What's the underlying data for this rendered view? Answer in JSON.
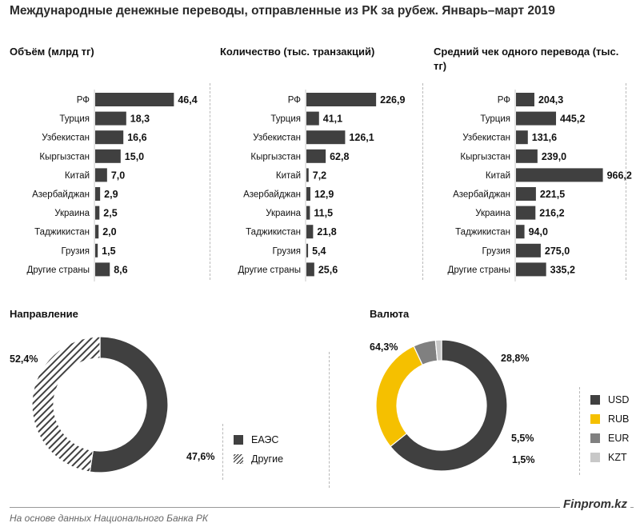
{
  "title": "Международные денежные переводы, отправленные из РК за рубеж. Январь–март 2019",
  "footer_source": "На основе данных  Национального  Банка РК",
  "brand": "Finprom.kz",
  "colors": {
    "bar": "#404040",
    "usd": "#404040",
    "rub": "#f5c000",
    "eur": "#808080",
    "kzt": "#c8c8c8"
  },
  "chart_data": [
    {
      "type": "bar",
      "orientation": "horizontal",
      "title": "Объём (млрд тг)",
      "categories": [
        "РФ",
        "Турция",
        "Узбекистан",
        "Кыргызстан",
        "Китай",
        "Азербайджан",
        "Украина",
        "Таджикистан",
        "Грузия",
        "Другие страны"
      ],
      "values": [
        46.4,
        18.3,
        16.6,
        15.0,
        7.0,
        2.9,
        2.5,
        2.0,
        1.5,
        8.6
      ],
      "labels": [
        "46,4",
        "18,3",
        "16,6",
        "15,0",
        "7,0",
        "2,9",
        "2,5",
        "2,0",
        "1,5",
        "8,6"
      ],
      "xlim": [
        0,
        50
      ]
    },
    {
      "type": "bar",
      "orientation": "horizontal",
      "title": "Количество  (тыс. транзакций)",
      "categories": [
        "РФ",
        "Турция",
        "Узбекистан",
        "Кыргызстан",
        "Китай",
        "Азербайджан",
        "Украина",
        "Таджикистан",
        "Грузия",
        "Другие страны"
      ],
      "values": [
        226.9,
        41.1,
        126.1,
        62.8,
        7.2,
        12.9,
        11.5,
        21.8,
        5.4,
        25.6
      ],
      "labels": [
        "226,9",
        "41,1",
        "126,1",
        "62,8",
        "7,2",
        "12,9",
        "11,5",
        "21,8",
        "5,4",
        "25,6"
      ],
      "xlim": [
        0,
        250
      ]
    },
    {
      "type": "bar",
      "orientation": "horizontal",
      "title": "Средний чек одного перевода (тыс. тг)",
      "categories": [
        "РФ",
        "Турция",
        "Узбекистан",
        "Кыргызстан",
        "Китай",
        "Азербайджан",
        "Украина",
        "Таджикистан",
        "Грузия",
        "Другие страны"
      ],
      "values": [
        204.3,
        445.2,
        131.6,
        239.0,
        966.2,
        221.5,
        216.2,
        94.0,
        275.0,
        335.2
      ],
      "labels": [
        "204,3",
        "445,2",
        "131,6",
        "239,0",
        "966,2",
        "221,5",
        "216,2",
        "94,0",
        "275,0",
        "335,2"
      ],
      "xlim": [
        0,
        1050
      ]
    },
    {
      "type": "pie",
      "donut": true,
      "title": "Направление",
      "slices": [
        {
          "name": "ЕАЭС",
          "value": 52.4,
          "label": "52,4%",
          "color": "#404040"
        },
        {
          "name": "Другие",
          "value": 47.6,
          "label": "47,6%",
          "color": "hatched"
        }
      ],
      "legend_position": "right"
    },
    {
      "type": "pie",
      "donut": true,
      "title": "Валюта",
      "slices": [
        {
          "name": "USD",
          "value": 64.3,
          "label": "64,3%",
          "color": "#404040"
        },
        {
          "name": "RUB",
          "value": 28.8,
          "label": "28,8%",
          "color": "#f5c000"
        },
        {
          "name": "EUR",
          "value": 5.5,
          "label": "5,5%",
          "color": "#808080"
        },
        {
          "name": "KZT",
          "value": 1.5,
          "label": "1,5%",
          "color": "#c8c8c8"
        }
      ],
      "legend_position": "right"
    }
  ]
}
